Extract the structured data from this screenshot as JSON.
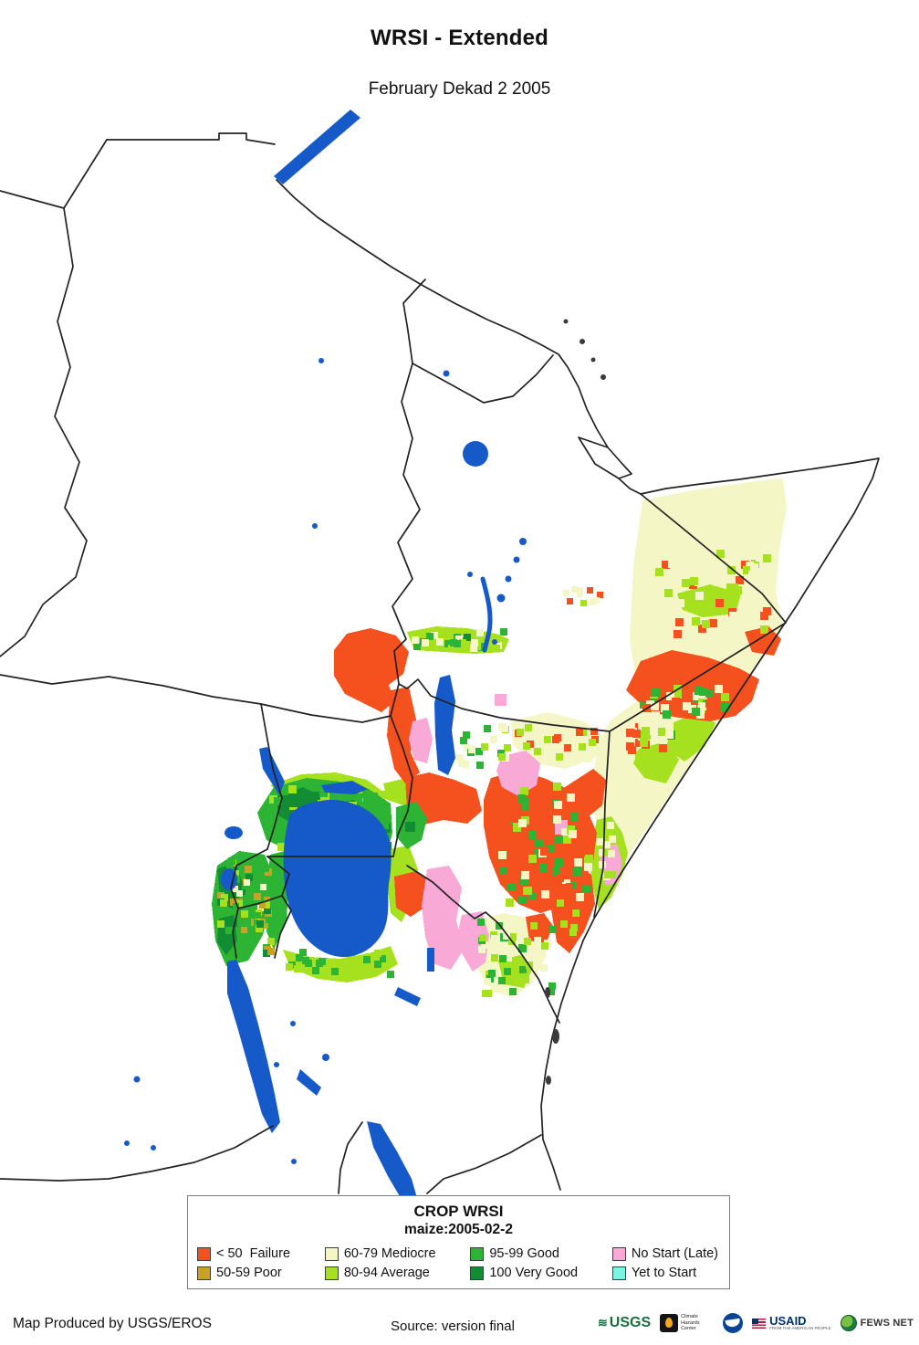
{
  "header": {
    "title": "WRSI - Extended",
    "subtitle": "February Dekad 2 2005"
  },
  "legend": {
    "title": "CROP WRSI",
    "subtitle": "maize:2005-02-2",
    "items": [
      {
        "key": "failure",
        "label": "< 50  Failure",
        "color": "#f4511e"
      },
      {
        "key": "poor",
        "label": "50-59 Poor",
        "color": "#c8a227"
      },
      {
        "key": "mediocre",
        "label": "60-79 Mediocre",
        "color": "#f4f6c6"
      },
      {
        "key": "average",
        "label": "80-94 Average",
        "color": "#a5e11f"
      },
      {
        "key": "good",
        "label": "95-99 Good",
        "color": "#2eb434"
      },
      {
        "key": "verygood",
        "label": "100 Very Good",
        "color": "#128d33"
      },
      {
        "key": "nostart",
        "label": "No Start (Late)",
        "color": "#f8a9d6"
      },
      {
        "key": "yettostart",
        "label": "Yet to Start",
        "color": "#7df5e3"
      }
    ]
  },
  "map": {
    "water_color": "#1659c8",
    "border_color": "#222222"
  },
  "footer": {
    "produced_by": "Map Produced by USGS/EROS",
    "source": "Source: version final",
    "logos": {
      "usgs": {
        "label": "USGS"
      },
      "chc": {
        "lines": [
          "Climate",
          "Hazards",
          "Center"
        ]
      },
      "usaid": {
        "label": "USAID",
        "tagline": "FROM THE AMERICAN PEOPLE"
      },
      "fewsnet": {
        "label": "FEWS NET"
      }
    }
  }
}
